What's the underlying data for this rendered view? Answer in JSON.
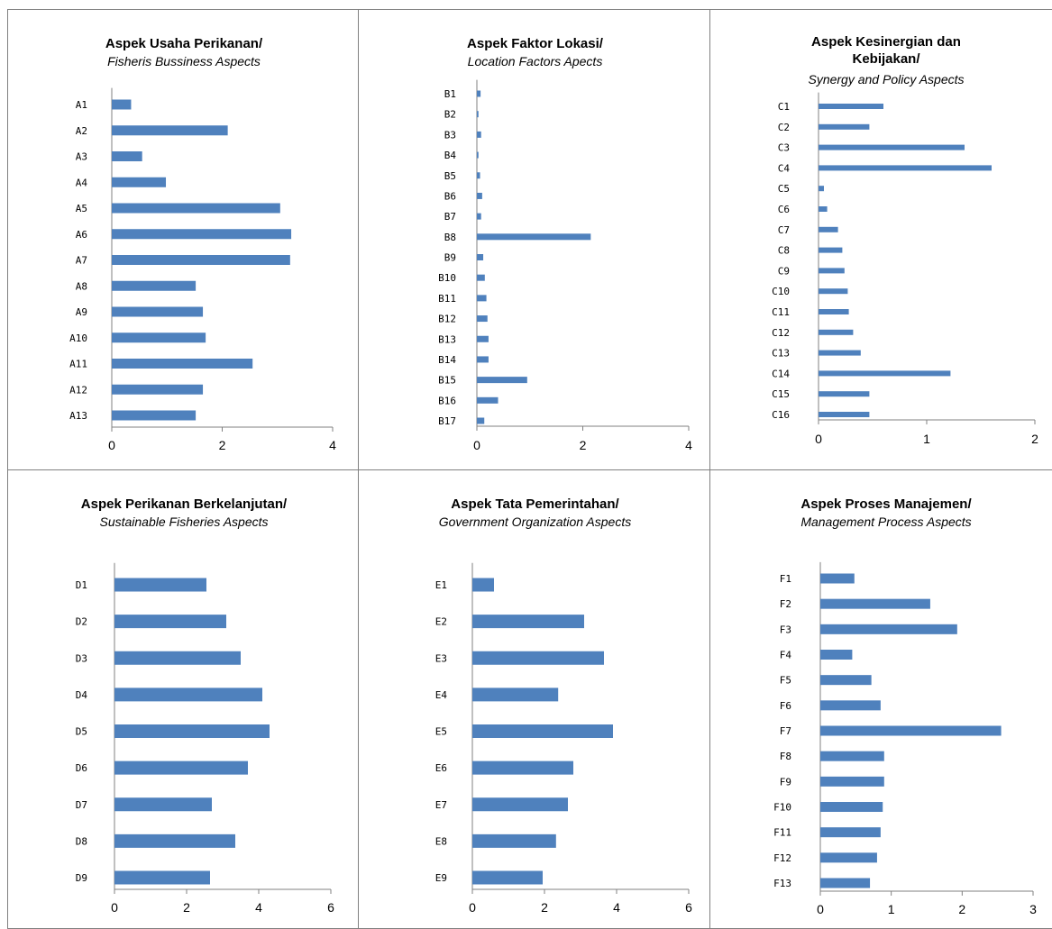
{
  "chart_data": [
    {
      "type": "bar",
      "orientation": "horizontal",
      "title": "Aspek Usaha Perikanan/",
      "subtitle": "Fisheris Bussiness Aspects",
      "categories": [
        "A1",
        "A2",
        "A3",
        "A4",
        "A5",
        "A6",
        "A7",
        "A8",
        "A9",
        "A10",
        "A11",
        "A12",
        "A13"
      ],
      "values": [
        0.35,
        2.1,
        0.55,
        0.98,
        3.05,
        3.25,
        3.23,
        1.52,
        1.65,
        1.7,
        2.55,
        1.65,
        1.52
      ],
      "xlim": [
        0,
        4
      ],
      "xticks": [
        "0",
        "2",
        "4"
      ],
      "grid": false
    },
    {
      "type": "bar",
      "orientation": "horizontal",
      "title": "Aspek Faktor Lokasi/",
      "subtitle": "Location Factors Apects",
      "categories": [
        "B1",
        "B2",
        "B3",
        "B4",
        "B5",
        "B6",
        "B7",
        "B8",
        "B9",
        "B10",
        "B11",
        "B12",
        "B13",
        "B14",
        "B15",
        "B16",
        "B17"
      ],
      "values": [
        0.07,
        0.03,
        0.08,
        0.03,
        0.06,
        0.1,
        0.08,
        2.15,
        0.12,
        0.15,
        0.18,
        0.2,
        0.22,
        0.22,
        0.95,
        0.4,
        0.14
      ],
      "xlim": [
        0,
        4
      ],
      "xticks": [
        "0",
        "2",
        "4"
      ],
      "grid": false
    },
    {
      "type": "bar",
      "orientation": "horizontal",
      "title_lines": [
        "Aspek Kesinergian dan",
        "Kebijakan/"
      ],
      "subtitle": "Synergy  and Policy Aspects",
      "categories": [
        "C1",
        "C2",
        "C3",
        "C4",
        "C5",
        "C6",
        "C7",
        "C8",
        "C9",
        "C10",
        "C11",
        "C12",
        "C13",
        "C14",
        "C15",
        "C16"
      ],
      "values": [
        0.6,
        0.47,
        1.35,
        1.6,
        0.05,
        0.08,
        0.18,
        0.22,
        0.24,
        0.27,
        0.28,
        0.32,
        0.39,
        1.22,
        0.47,
        0.47
      ],
      "xlim": [
        0,
        2
      ],
      "xticks": [
        "0",
        "1",
        "2"
      ],
      "grid": false
    },
    {
      "type": "bar",
      "orientation": "horizontal",
      "title": "Aspek Perikanan Berkelanjutan/",
      "subtitle": "Sustainable Fisheries Aspects",
      "categories": [
        "D1",
        "D2",
        "D3",
        "D4",
        "D5",
        "D6",
        "D7",
        "D8",
        "D9"
      ],
      "values": [
        2.55,
        3.1,
        3.5,
        4.1,
        4.3,
        3.7,
        2.7,
        3.35,
        2.65
      ],
      "xlim": [
        0,
        6
      ],
      "xticks": [
        "0",
        "2",
        "4",
        "6"
      ],
      "grid": false
    },
    {
      "type": "bar",
      "orientation": "horizontal",
      "title": "Aspek Tata Pemerintahan/",
      "subtitle": "Government  Organization Aspects",
      "categories": [
        "E1",
        "E2",
        "E3",
        "E4",
        "E5",
        "E6",
        "E7",
        "E8",
        "E9"
      ],
      "values": [
        0.6,
        3.1,
        3.65,
        2.38,
        3.9,
        2.8,
        2.65,
        2.32,
        1.95
      ],
      "xlim": [
        0,
        6
      ],
      "xticks": [
        "0",
        "2",
        "4",
        "6"
      ],
      "grid": false
    },
    {
      "type": "bar",
      "orientation": "horizontal",
      "title": "Aspek Proses Manajemen/",
      "subtitle": "Management  Process Aspects",
      "categories": [
        "F1",
        "F2",
        "F3",
        "F4",
        "F5",
        "F6",
        "F7",
        "F8",
        "F9",
        "F10",
        "F11",
        "F12",
        "F13"
      ],
      "values": [
        0.48,
        1.55,
        1.93,
        0.45,
        0.72,
        0.85,
        2.55,
        0.9,
        0.9,
        0.88,
        0.85,
        0.8,
        0.7
      ],
      "xlim": [
        0,
        3
      ],
      "xticks": [
        "0",
        "1",
        "2",
        "3"
      ],
      "grid": false
    }
  ],
  "colors": {
    "bar": "#4f81bd",
    "axis": "#808080",
    "border": "#808080"
  }
}
